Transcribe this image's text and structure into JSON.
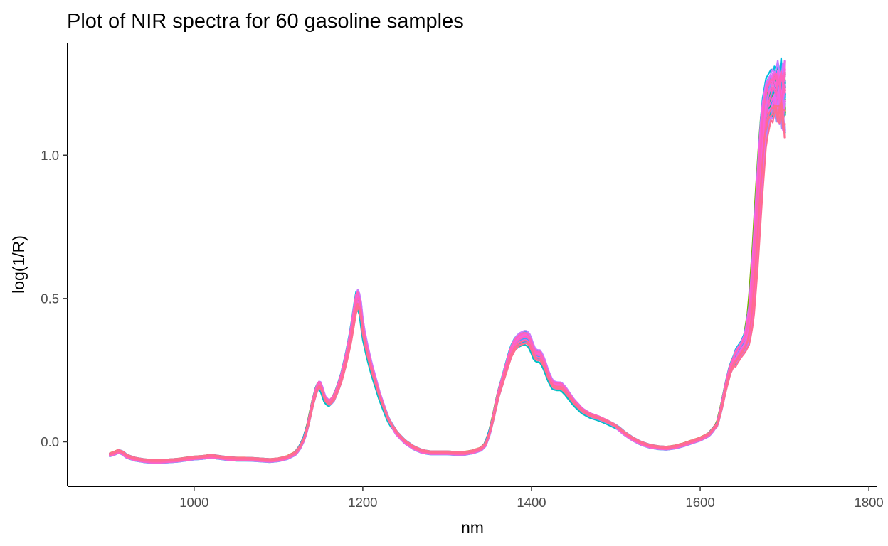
{
  "chart_data": {
    "type": "line",
    "title": "Plot of NIR spectra for 60 gasoline samples",
    "xlabel": "nm",
    "ylabel": "log(1/R)",
    "xlim": [
      850,
      1810
    ],
    "ylim": [
      -0.155,
      1.39
    ],
    "xticks": [
      1000,
      1200,
      1400,
      1600,
      1800
    ],
    "xtick_labels": [
      "1000",
      "1200",
      "1400",
      "1600",
      "1800"
    ],
    "yticks": [
      0.0,
      0.5,
      1.0
    ],
    "ytick_labels": [
      "0.0",
      "0.5",
      "1.0"
    ],
    "grid": false,
    "legend": "none",
    "n_samples": 60,
    "wavelength_range": [
      900,
      1700
    ],
    "base_spectrum": {
      "x": [
        900,
        905,
        910,
        915,
        920,
        930,
        940,
        950,
        960,
        970,
        980,
        990,
        1000,
        1010,
        1020,
        1030,
        1040,
        1050,
        1060,
        1070,
        1080,
        1090,
        1100,
        1110,
        1120,
        1125,
        1130,
        1135,
        1140,
        1145,
        1148,
        1150,
        1152,
        1155,
        1160,
        1165,
        1170,
        1175,
        1180,
        1185,
        1190,
        1192,
        1194,
        1197,
        1200,
        1205,
        1210,
        1220,
        1230,
        1240,
        1250,
        1260,
        1270,
        1280,
        1290,
        1300,
        1310,
        1320,
        1330,
        1340,
        1345,
        1350,
        1355,
        1360,
        1365,
        1370,
        1375,
        1380,
        1385,
        1390,
        1393,
        1397,
        1400,
        1403,
        1406,
        1410,
        1413,
        1416,
        1420,
        1425,
        1430,
        1435,
        1440,
        1445,
        1450,
        1460,
        1470,
        1480,
        1490,
        1500,
        1510,
        1520,
        1530,
        1540,
        1550,
        1560,
        1570,
        1580,
        1590,
        1600,
        1610,
        1620,
        1625,
        1630,
        1635,
        1640,
        1645,
        1650,
        1655,
        1660,
        1665,
        1670,
        1675,
        1680,
        1685,
        1690,
        1695,
        1700
      ],
      "y": [
        -0.045,
        -0.04,
        -0.033,
        -0.038,
        -0.05,
        -0.06,
        -0.065,
        -0.068,
        -0.068,
        -0.066,
        -0.064,
        -0.06,
        -0.056,
        -0.054,
        -0.05,
        -0.054,
        -0.058,
        -0.06,
        -0.06,
        -0.061,
        -0.063,
        -0.065,
        -0.062,
        -0.055,
        -0.04,
        -0.02,
        0.01,
        0.06,
        0.13,
        0.185,
        0.2,
        0.195,
        0.178,
        0.15,
        0.135,
        0.15,
        0.185,
        0.23,
        0.29,
        0.36,
        0.45,
        0.49,
        0.5,
        0.47,
        0.39,
        0.32,
        0.26,
        0.16,
        0.08,
        0.03,
        0.0,
        -0.02,
        -0.033,
        -0.038,
        -0.038,
        -0.038,
        -0.04,
        -0.04,
        -0.035,
        -0.025,
        -0.01,
        0.03,
        0.09,
        0.16,
        0.21,
        0.26,
        0.31,
        0.34,
        0.355,
        0.362,
        0.364,
        0.355,
        0.335,
        0.31,
        0.3,
        0.3,
        0.285,
        0.265,
        0.23,
        0.2,
        0.195,
        0.195,
        0.18,
        0.16,
        0.14,
        0.11,
        0.093,
        0.083,
        0.07,
        0.055,
        0.03,
        0.01,
        -0.005,
        -0.015,
        -0.02,
        -0.022,
        -0.018,
        -0.01,
        0.0,
        0.01,
        0.025,
        0.06,
        0.12,
        0.19,
        0.25,
        0.285,
        0.31,
        0.33,
        0.36,
        0.45,
        0.65,
        0.9,
        1.11,
        1.19,
        1.215,
        1.22,
        1.21,
        1.2
      ]
    },
    "series_colors": [
      "#F8766D",
      "#EA8331",
      "#D89000",
      "#C09B00",
      "#A3A500",
      "#7CAE00",
      "#39B600",
      "#00BB4E",
      "#00BF7D",
      "#00C1A3",
      "#00BFC4",
      "#00BAE0",
      "#00B0F6",
      "#35A2FF",
      "#9590FF",
      "#C77CFF",
      "#E76BF3",
      "#FA62DB",
      "#FF62BC",
      "#FF6C91"
    ]
  }
}
